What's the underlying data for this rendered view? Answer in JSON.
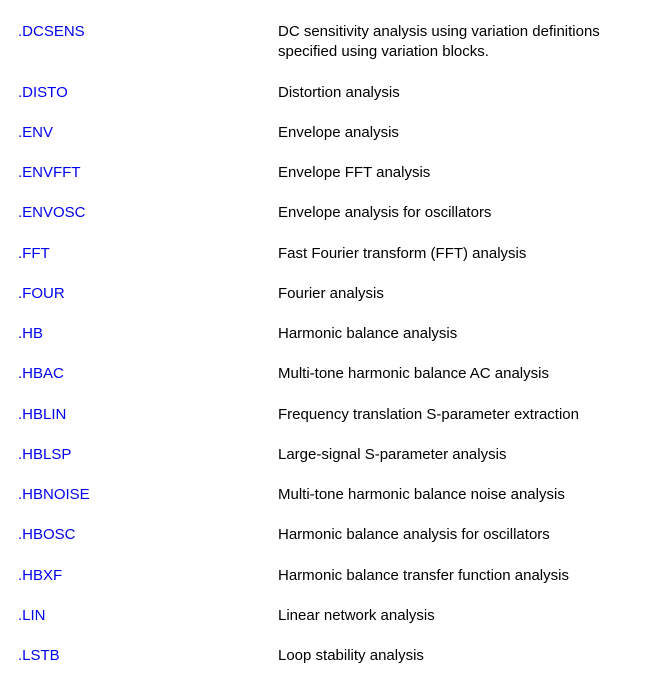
{
  "colors": {
    "link": "#0000ee",
    "text": "#000000",
    "background": "#ffffff"
  },
  "items": [
    {
      "cmd": ".DCSENS",
      "desc": "DC sensitivity analysis using variation definitions specified using variation blocks."
    },
    {
      "cmd": ".DISTO",
      "desc": "Distortion analysis"
    },
    {
      "cmd": ".ENV",
      "desc": "Envelope analysis"
    },
    {
      "cmd": ".ENVFFT",
      "desc": "Envelope FFT analysis"
    },
    {
      "cmd": ".ENVOSC",
      "desc": "Envelope analysis for oscillators"
    },
    {
      "cmd": ".FFT",
      "desc": "Fast Fourier transform (FFT) analysis"
    },
    {
      "cmd": ".FOUR",
      "desc": "Fourier analysis"
    },
    {
      "cmd": ".HB",
      "desc": "Harmonic balance analysis"
    },
    {
      "cmd": ".HBAC",
      "desc": "Multi-tone harmonic balance AC analysis"
    },
    {
      "cmd": ".HBLIN",
      "desc": "Frequency translation S-parameter extraction"
    },
    {
      "cmd": ".HBLSP",
      "desc": "Large-signal S-parameter analysis"
    },
    {
      "cmd": ".HBNOISE",
      "desc": "Multi-tone harmonic balance noise analysis"
    },
    {
      "cmd": ".HBOSC",
      "desc": "Harmonic balance analysis for oscillators"
    },
    {
      "cmd": ".HBXF",
      "desc": "Harmonic balance transfer function analysis"
    },
    {
      "cmd": ".LIN",
      "desc": "Linear network analysis"
    },
    {
      "cmd": ".LSTB",
      "desc": "Loop stability analysis"
    }
  ]
}
